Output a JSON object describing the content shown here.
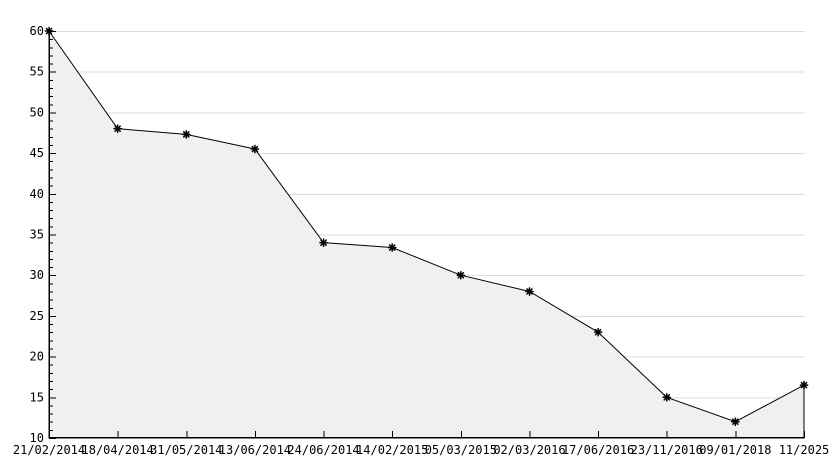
{
  "chart_data": {
    "type": "area",
    "title": "",
    "xlabel": "",
    "ylabel": "",
    "categories": [
      "21/02/2014",
      "18/04/2014",
      "31/05/2014",
      "13/06/2014",
      "24/06/2014",
      "14/02/2015",
      "05/03/2015",
      "02/03/2016",
      "17/06/2016",
      "23/11/2016",
      "09/01/2018",
      "11/2025"
    ],
    "values": [
      60,
      48,
      47.3,
      45.5,
      34,
      33.4,
      30,
      28,
      23,
      15,
      12,
      16.5
    ],
    "ylim": [
      10,
      60
    ],
    "y_tick_step": 5,
    "y_minor_tick_step": 1,
    "y_tick_labels": [
      "10",
      "15",
      "20",
      "25",
      "30",
      "35",
      "40",
      "45",
      "50",
      "55",
      "60"
    ],
    "grid": "horizontal-major",
    "legend": "none",
    "marker": "asterisk",
    "colors": {
      "line": "#000000",
      "marker": "#000000",
      "fill": "#f0f0f0",
      "grid": "#dcdcdc",
      "axis": "#000000",
      "text": "#000000",
      "background": "#ffffff"
    }
  }
}
